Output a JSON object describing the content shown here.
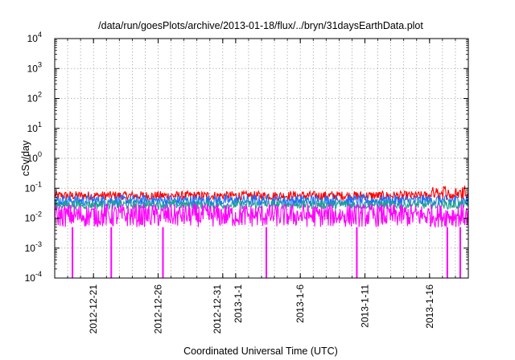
{
  "chart_data": {
    "type": "line",
    "title": "/data/run/goesPlots/archive/2013-01-18/flux/../bryn/31daysEarthData.plot",
    "xlabel": "Coordinated Universal Time (UTC)",
    "ylabel": "cSv/day",
    "y_scale": "log",
    "ylim": [
      0.0001,
      10000
    ],
    "y_ticks": [
      {
        "base": "10",
        "exp": "-4",
        "value": 0.0001
      },
      {
        "base": "10",
        "exp": "-3",
        "value": 0.001
      },
      {
        "base": "10",
        "exp": "-2",
        "value": 0.01
      },
      {
        "base": "10",
        "exp": "-1",
        "value": 0.1
      },
      {
        "base": "10",
        "exp": "0",
        "value": 1
      },
      {
        "base": "10",
        "exp": "1",
        "value": 10
      },
      {
        "base": "10",
        "exp": "2",
        "value": 100
      },
      {
        "base": "10",
        "exp": "3",
        "value": 1000
      },
      {
        "base": "10",
        "exp": "4",
        "value": 10000
      }
    ],
    "xlim": [
      "2012-12-18",
      "2013-01-19"
    ],
    "x_ticks": [
      {
        "label": "2012-12-21",
        "date": "2012-12-21"
      },
      {
        "label": "2012-12-26",
        "date": "2012-12-26"
      },
      {
        "label": "2012-12-31",
        "date": "2012-12-31"
      },
      {
        "label": "2013-1-1",
        "date": "2013-01-01"
      },
      {
        "label": "2013-1-6",
        "date": "2013-01-06"
      },
      {
        "label": "2013-1-11",
        "date": "2013-01-11"
      },
      {
        "label": "2013-1-16",
        "date": "2013-01-16"
      }
    ],
    "grid": true,
    "series": [
      {
        "color": "#ff0000",
        "typical_range": [
          0.04,
          0.08
        ],
        "peak": 0.12
      },
      {
        "color": "#1f6fff",
        "typical_range": [
          0.025,
          0.06
        ]
      },
      {
        "color": "#20a090",
        "typical_range": [
          0.02,
          0.04
        ]
      },
      {
        "color": "#ff00ff",
        "typical_range": [
          0.005,
          0.03
        ],
        "dropouts": [
          "2012-12-19",
          "2012-12-22",
          "2012-12-26",
          "2013-01-03",
          "2013-01-10",
          "2013-01-17",
          "2013-01-18"
        ]
      }
    ]
  }
}
